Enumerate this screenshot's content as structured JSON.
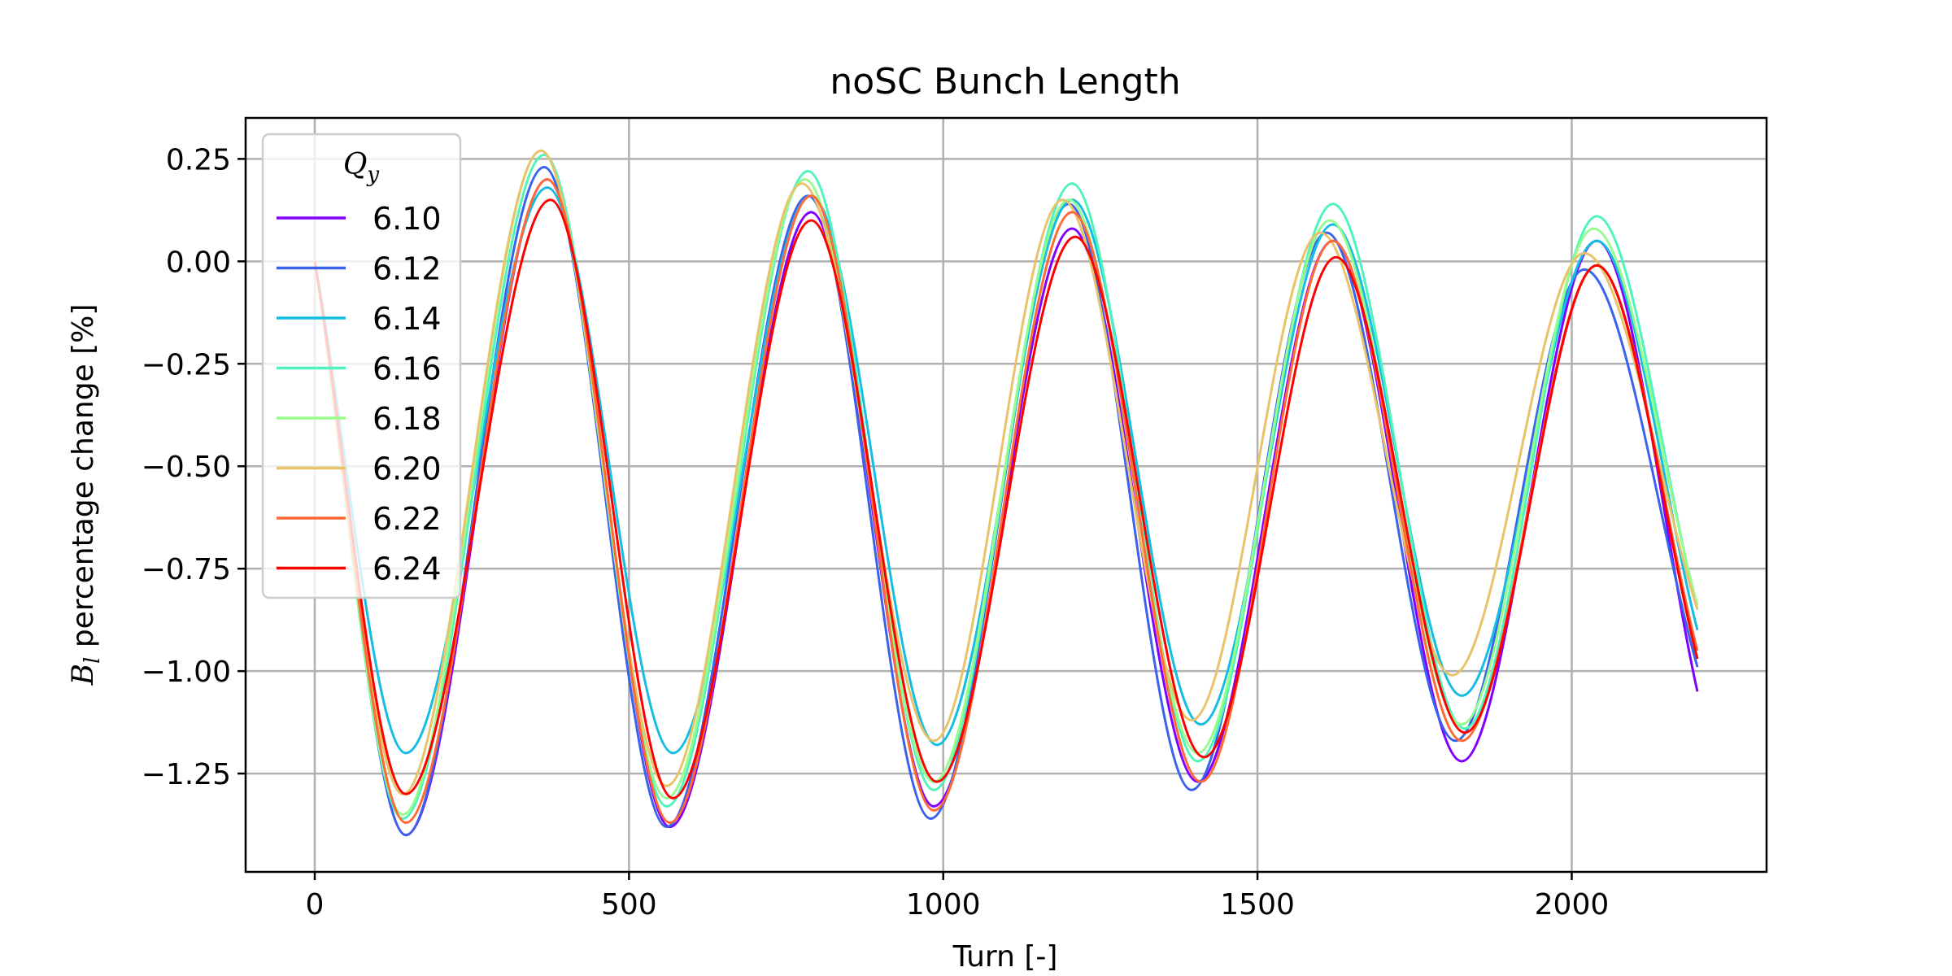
{
  "chart_data": {
    "type": "line",
    "title": "noSC Bunch Length",
    "xlabel": "Turn [-]",
    "ylabel_symbol": "B",
    "ylabel_subscript": "l",
    "ylabel_rest": " percentage change [%]",
    "xlim": [
      -110,
      2310
    ],
    "ylim": [
      -1.49,
      0.35
    ],
    "xticks": [
      {
        "value": 0,
        "label": "0"
      },
      {
        "value": 500,
        "label": "500"
      },
      {
        "value": 1000,
        "label": "1000"
      },
      {
        "value": 1500,
        "label": "1500"
      },
      {
        "value": 2000,
        "label": "2000"
      }
    ],
    "yticks": [
      {
        "value": 0.25,
        "label": "0.25"
      },
      {
        "value": 0.0,
        "label": "0.00"
      },
      {
        "value": -0.25,
        "label": "−0.25"
      },
      {
        "value": -0.5,
        "label": "−0.50"
      },
      {
        "value": -0.75,
        "label": "−0.75"
      },
      {
        "value": -1.0,
        "label": "−1.00"
      },
      {
        "value": -1.25,
        "label": "−1.25"
      }
    ],
    "grid": true,
    "legend": {
      "placement": "upper-left",
      "title_symbol": "Q",
      "title_subscript": "y"
    },
    "series": [
      {
        "name": "6.10",
        "color": "#8000ff",
        "points": [
          [
            0,
            0
          ],
          [
            145,
            -1.4
          ],
          [
            370,
            0.2
          ],
          [
            565,
            -1.38
          ],
          [
            790,
            0.12
          ],
          [
            985,
            -1.33
          ],
          [
            1205,
            0.08
          ],
          [
            1405,
            -1.27
          ],
          [
            1620,
            0.05
          ],
          [
            1825,
            -1.22
          ],
          [
            2040,
            0.05
          ],
          [
            2200,
            -1.05
          ]
        ]
      },
      {
        "name": "6.12",
        "color": "#3a62ec",
        "points": [
          [
            0,
            0
          ],
          [
            145,
            -1.4
          ],
          [
            365,
            0.23
          ],
          [
            560,
            -1.38
          ],
          [
            785,
            0.16
          ],
          [
            980,
            -1.36
          ],
          [
            1200,
            0.14
          ],
          [
            1395,
            -1.29
          ],
          [
            1610,
            0.07
          ],
          [
            1815,
            -1.17
          ],
          [
            2020,
            -0.02
          ],
          [
            2200,
            -0.99
          ]
        ]
      },
      {
        "name": "6.14",
        "color": "#16bde3",
        "points": [
          [
            0,
            0
          ],
          [
            145,
            -1.2
          ],
          [
            370,
            0.18
          ],
          [
            570,
            -1.2
          ],
          [
            790,
            0.16
          ],
          [
            990,
            -1.18
          ],
          [
            1205,
            0.15
          ],
          [
            1410,
            -1.13
          ],
          [
            1620,
            0.09
          ],
          [
            1825,
            -1.06
          ],
          [
            2040,
            0.05
          ],
          [
            2200,
            -0.9
          ]
        ]
      },
      {
        "name": "6.16",
        "color": "#4ef4b9",
        "points": [
          [
            0,
            0
          ],
          [
            140,
            -1.36
          ],
          [
            365,
            0.26
          ],
          [
            560,
            -1.33
          ],
          [
            785,
            0.22
          ],
          [
            985,
            -1.29
          ],
          [
            1205,
            0.19
          ],
          [
            1405,
            -1.22
          ],
          [
            1620,
            0.14
          ],
          [
            1830,
            -1.14
          ],
          [
            2040,
            0.11
          ],
          [
            2200,
            -0.85
          ]
        ]
      },
      {
        "name": "6.18",
        "color": "#98fb8e",
        "points": [
          [
            0,
            0
          ],
          [
            140,
            -1.35
          ],
          [
            360,
            0.27
          ],
          [
            560,
            -1.31
          ],
          [
            780,
            0.2
          ],
          [
            985,
            -1.27
          ],
          [
            1200,
            0.15
          ],
          [
            1405,
            -1.2
          ],
          [
            1615,
            0.1
          ],
          [
            1825,
            -1.13
          ],
          [
            2035,
            0.08
          ],
          [
            2200,
            -0.84
          ]
        ]
      },
      {
        "name": "6.20",
        "color": "#e8c36a",
        "points": [
          [
            0,
            0
          ],
          [
            140,
            -1.3
          ],
          [
            360,
            0.27
          ],
          [
            560,
            -1.28
          ],
          [
            775,
            0.19
          ],
          [
            985,
            -1.17
          ],
          [
            1190,
            0.15
          ],
          [
            1395,
            -1.12
          ],
          [
            1600,
            0.07
          ],
          [
            1810,
            -1.01
          ],
          [
            2020,
            0.02
          ],
          [
            2200,
            -0.85
          ]
        ]
      },
      {
        "name": "6.22",
        "color": "#ff6a35",
        "points": [
          [
            0,
            0
          ],
          [
            145,
            -1.37
          ],
          [
            370,
            0.2
          ],
          [
            565,
            -1.37
          ],
          [
            790,
            0.16
          ],
          [
            985,
            -1.34
          ],
          [
            1205,
            0.12
          ],
          [
            1410,
            -1.27
          ],
          [
            1620,
            0.05
          ],
          [
            1825,
            -1.17
          ],
          [
            2040,
            -0.01
          ],
          [
            2200,
            -0.95
          ]
        ]
      },
      {
        "name": "6.24",
        "color": "#ff0000",
        "points": [
          [
            0,
            0
          ],
          [
            145,
            -1.3
          ],
          [
            375,
            0.15
          ],
          [
            570,
            -1.31
          ],
          [
            790,
            0.1
          ],
          [
            990,
            -1.27
          ],
          [
            1210,
            0.06
          ],
          [
            1415,
            -1.21
          ],
          [
            1625,
            0.01
          ],
          [
            1830,
            -1.15
          ],
          [
            2040,
            -0.01
          ],
          [
            2200,
            -0.97
          ]
        ]
      }
    ]
  }
}
